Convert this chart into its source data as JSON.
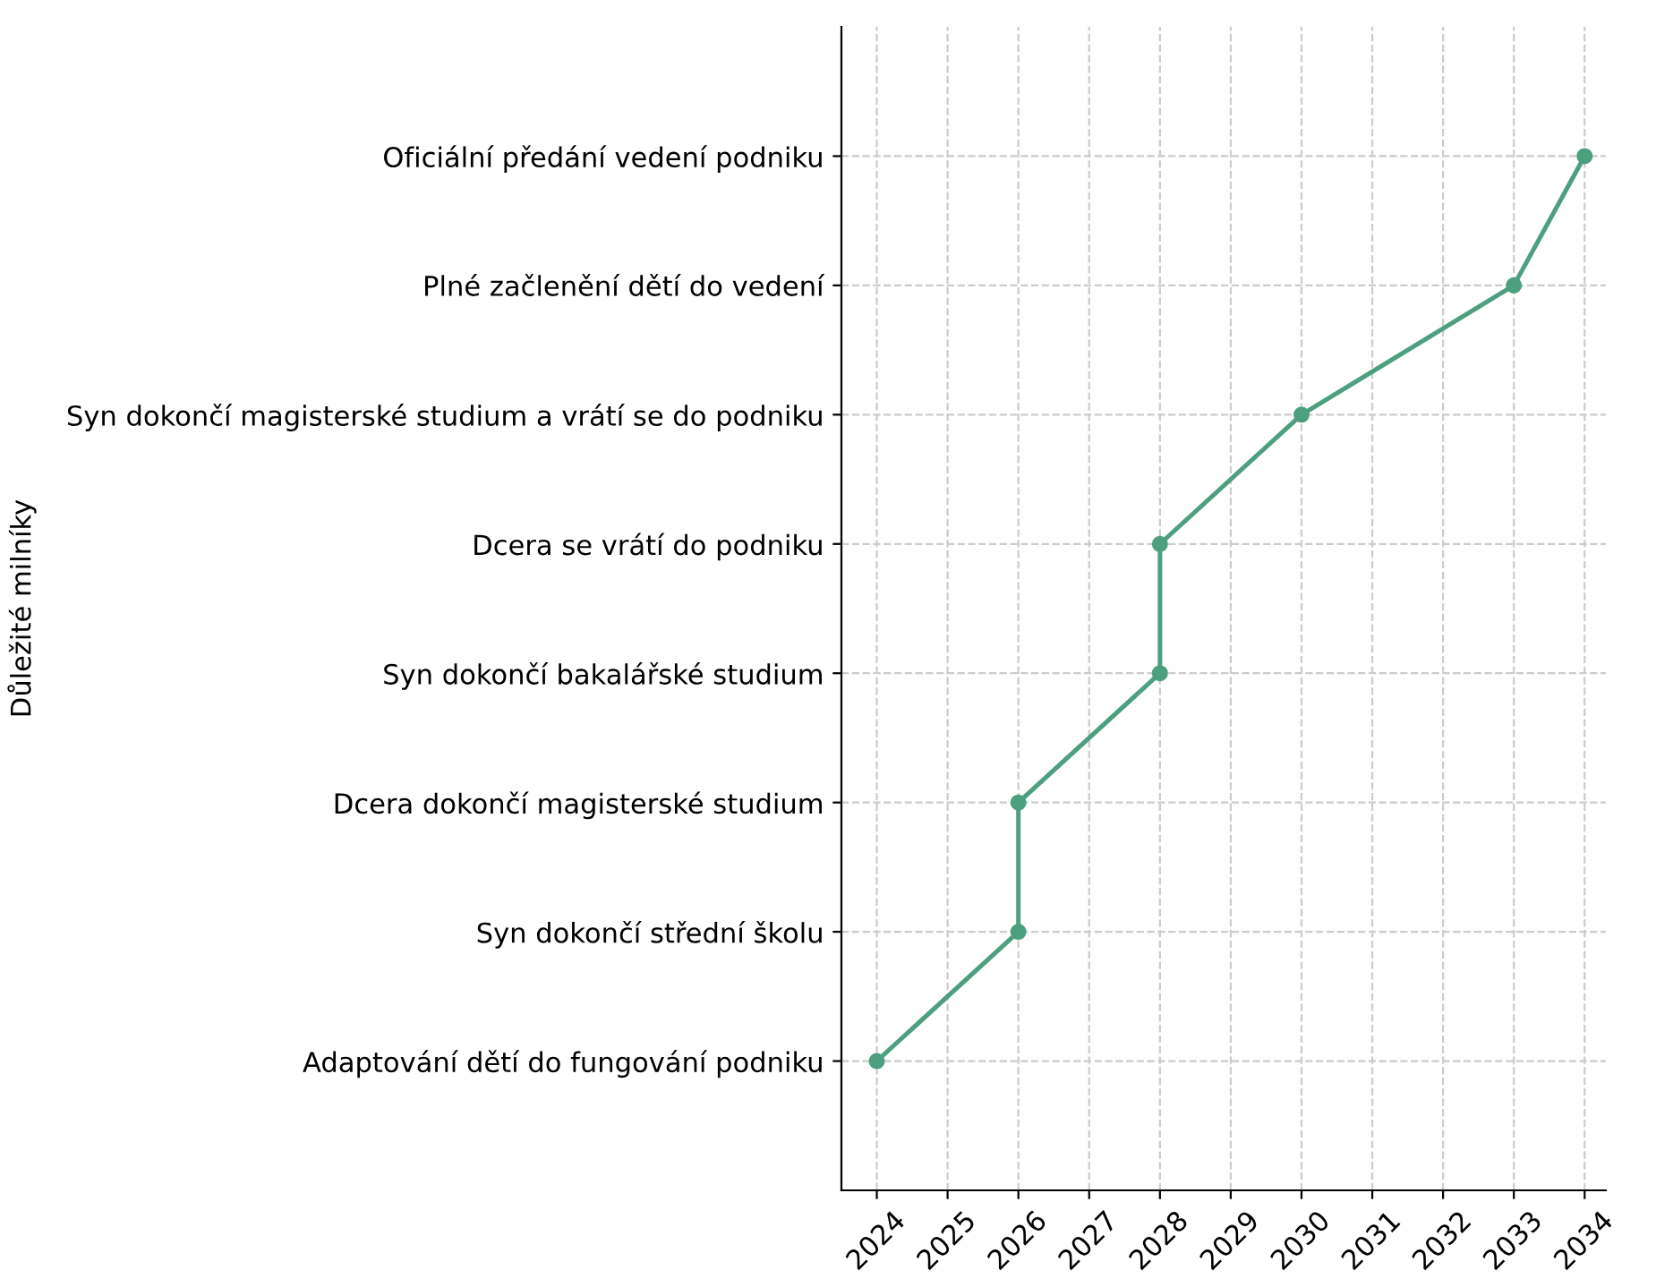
{
  "chart_data": {
    "type": "line",
    "orientation": "horizontal",
    "ylabel": "Důležité milníky",
    "categories": [
      "Oficiální předání vedení podniku",
      "Plné začlenění dětí do vedení",
      "Syn dokončí magisterské studium a vrátí se do podniku",
      "Dcera se vrátí do podniku",
      "Syn dokončí bakalářské studium",
      "Dcera dokončí magisterské studium",
      "Syn dokončí střední školu",
      "Adaptování dětí do fungování podniku"
    ],
    "values": [
      2034,
      2033,
      2030,
      2028,
      2028,
      2026,
      2026,
      2024
    ],
    "color": "#4c9f7f",
    "marker": "circle",
    "line_style": "solid",
    "grid": true,
    "xlim": [
      2023.5,
      2034.3
    ],
    "xticks": [
      2024,
      2025,
      2026,
      2027,
      2028,
      2029,
      2030,
      2031,
      2032,
      2033,
      2034
    ]
  }
}
